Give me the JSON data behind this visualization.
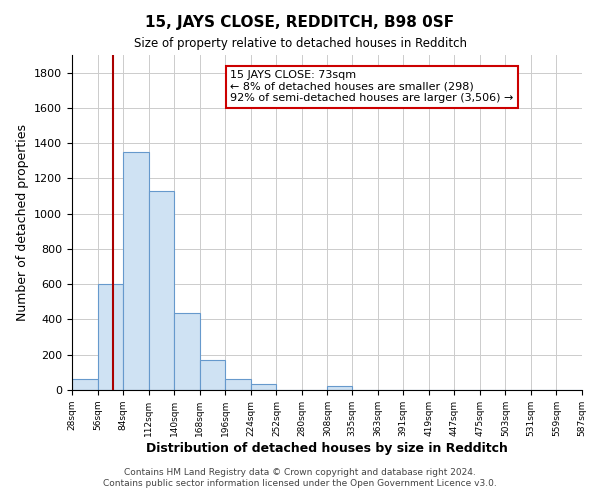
{
  "title": "15, JAYS CLOSE, REDDITCH, B98 0SF",
  "subtitle": "Size of property relative to detached houses in Redditch",
  "xlabel": "Distribution of detached houses by size in Redditch",
  "ylabel": "Number of detached properties",
  "bin_edges": [
    28,
    56,
    84,
    112,
    140,
    168,
    196,
    224,
    252,
    280,
    308,
    335,
    363,
    391,
    419,
    447,
    475,
    503,
    531,
    559,
    587
  ],
  "bar_heights": [
    60,
    600,
    1350,
    1130,
    435,
    170,
    60,
    35,
    0,
    0,
    20,
    0,
    0,
    0,
    0,
    0,
    0,
    0,
    0,
    0
  ],
  "bar_color": "#cfe2f3",
  "bar_edge_color": "#6699cc",
  "vline_x": 73,
  "vline_color": "#aa0000",
  "annotation_line1": "15 JAYS CLOSE: 73sqm",
  "annotation_line2": "← 8% of detached houses are smaller (298)",
  "annotation_line3": "92% of semi-detached houses are larger (3,506) →",
  "annotation_box_color": "#ffffff",
  "annotation_box_edge_color": "#cc0000",
  "ylim": [
    0,
    1900
  ],
  "yticks": [
    0,
    200,
    400,
    600,
    800,
    1000,
    1200,
    1400,
    1600,
    1800
  ],
  "footer_line1": "Contains HM Land Registry data © Crown copyright and database right 2024.",
  "footer_line2": "Contains public sector information licensed under the Open Government Licence v3.0.",
  "background_color": "#ffffff",
  "grid_color": "#cccccc"
}
